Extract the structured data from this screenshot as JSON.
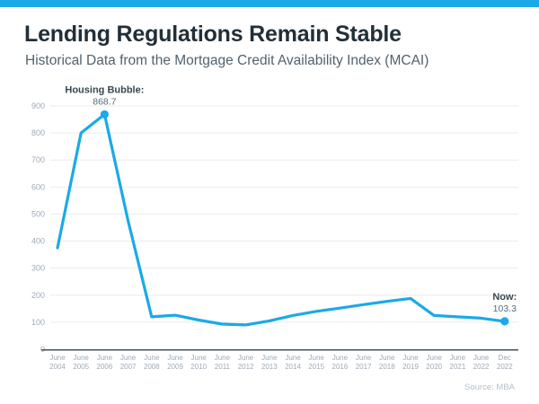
{
  "accent_color": "#1ba9e8",
  "header": {
    "title": "Lending Regulations Remain Stable",
    "subtitle": "Historical Data from the Mortgage Credit Availability Index (MCAI)"
  },
  "chart_data": {
    "type": "line",
    "title": "Lending Regulations Remain Stable",
    "subtitle": "Historical Data from the Mortgage Credit Availability Index (MCAI)",
    "x_categories": [
      "June 2004",
      "June 2005",
      "June 2006",
      "June 2007",
      "June 2008",
      "June 2009",
      "June 2010",
      "June 2011",
      "June 2012",
      "June 2013",
      "June 2014",
      "June 2015",
      "June 2016",
      "June 2017",
      "June 2018",
      "June 2019",
      "June 2020",
      "June 2021",
      "June 2022",
      "Dec 2022"
    ],
    "values": [
      375,
      800,
      868.7,
      475,
      120,
      126,
      108,
      93,
      90,
      105,
      125,
      140,
      152,
      165,
      177,
      188,
      125,
      120,
      115,
      103.3
    ],
    "ylim": [
      0,
      900
    ],
    "yticks": [
      0,
      100,
      200,
      300,
      400,
      500,
      600,
      700,
      800,
      900
    ],
    "grid": "horizontal",
    "legend": "none",
    "line_color": "#1ba9e8",
    "gridline_color": "#ececec",
    "axis_line_color": "#46505a",
    "tick_label_color": "#9faab5",
    "annotation_label_color": "#37474f",
    "annotation_value_color": "#546e7a",
    "annotations": [
      {
        "name": "housing-bubble-annotation",
        "label": "Housing Bubble:",
        "value_text": "868.7",
        "point_index": 2
      },
      {
        "name": "now-annotation",
        "label": "Now:",
        "value_text": "103.3",
        "point_index": 19
      }
    ],
    "source": "Source: MBA"
  }
}
